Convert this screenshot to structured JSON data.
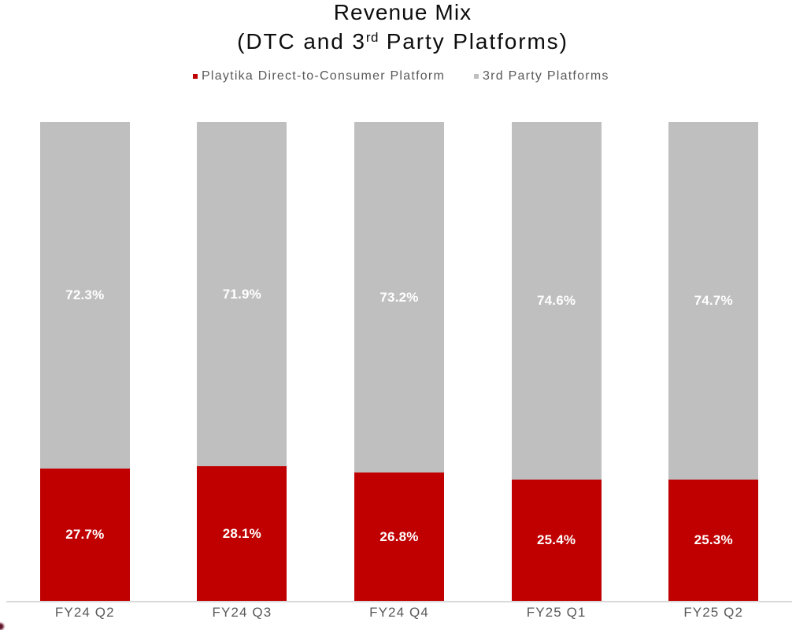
{
  "chart_data": {
    "type": "bar",
    "stacked": true,
    "orientation": "vertical",
    "title": "Revenue Mix",
    "subtitle": "(DTC and 3rd Party Platforms)",
    "categories": [
      "FY24 Q2",
      "FY24 Q3",
      "FY24 Q4",
      "FY25 Q1",
      "FY25 Q2"
    ],
    "series": [
      {
        "name": "Playtika Direct-to-Consumer Platform",
        "color": "#c00000",
        "values": [
          27.7,
          28.1,
          26.8,
          25.4,
          25.3
        ],
        "labels": [
          "27.7%",
          "28.1%",
          "26.8%",
          "25.4%",
          "25.3%"
        ]
      },
      {
        "name": "3rd Party Platforms",
        "color": "#bfbfbf",
        "values": [
          72.3,
          71.9,
          73.2,
          74.6,
          74.7
        ],
        "labels": [
          "72.3%",
          "71.9%",
          "73.2%",
          "74.6%",
          "74.7%"
        ]
      }
    ],
    "ylim": [
      0,
      100
    ],
    "grid": false,
    "legend_position": "top",
    "data_label_color": "#ffffff"
  },
  "title": {
    "line1": "Revenue Mix",
    "line2_prefix": "(DTC and 3",
    "line2_sup": "rd",
    "line2_suffix": " Party Platforms)"
  },
  "legend": {
    "items": [
      {
        "label": "Playtika Direct-to-Consumer Platform",
        "color": "#c00000"
      },
      {
        "label": "3rd Party Platforms",
        "color": "#bfbfbf"
      }
    ]
  },
  "colors": {
    "dtc_red": "#c00000",
    "third_party_gray": "#bfbfbf",
    "axis_line": "#d9d9d9",
    "text_gray": "#595959",
    "title_text": "#0d0d0d",
    "background": "#ffffff"
  }
}
